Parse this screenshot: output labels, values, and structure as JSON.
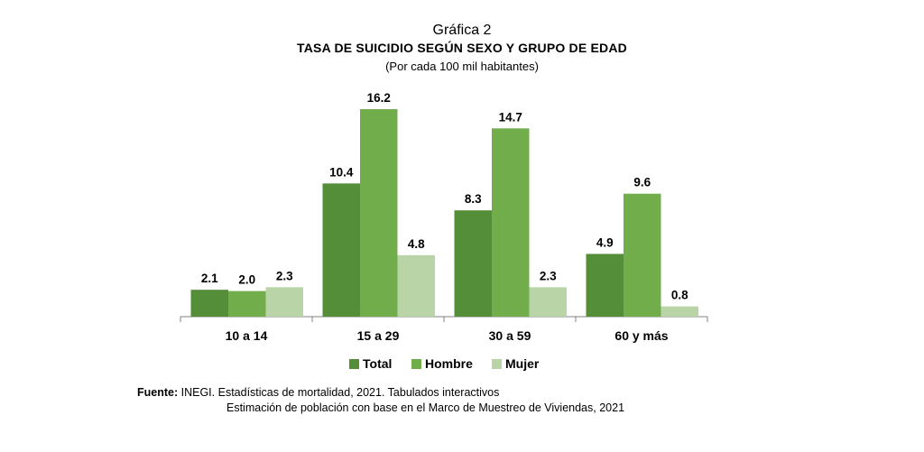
{
  "figure": {
    "label": "Gráfica 2",
    "title": "TASA DE SUICIDIO SEGÚN SEXO Y GRUPO DE EDAD",
    "subtitle": "(Por cada 100 mil habitantes)"
  },
  "chart_data": {
    "type": "bar",
    "categories": [
      "10 a 14",
      "15 a 29",
      "30 a 59",
      "60 y más"
    ],
    "series": [
      {
        "name": "Total",
        "values": [
          2.1,
          10.4,
          8.3,
          4.9
        ],
        "color": "#548e38"
      },
      {
        "name": "Hombre",
        "values": [
          2.0,
          16.2,
          14.7,
          9.6
        ],
        "color": "#72ad4c"
      },
      {
        "name": "Mujer",
        "values": [
          2.3,
          4.8,
          2.3,
          0.8
        ],
        "color": "#b9d5a7"
      }
    ],
    "value_labels": [
      [
        "2.1",
        "10.4",
        "8.3",
        "4.9"
      ],
      [
        "2.0",
        "16.2",
        "14.7",
        "9.6"
      ],
      [
        "2.3",
        "4.8",
        "2.3",
        "0.8"
      ]
    ],
    "ylim": [
      0,
      16.2
    ],
    "legend_position": "bottom",
    "grid": false
  },
  "source": {
    "label": "Fuente:",
    "line1": "INEGI. Estadísticas de mortalidad, 2021. Tabulados interactivos",
    "line2": "Estimación de población con base en el Marco de Muestreo de Viviendas, 2021"
  }
}
